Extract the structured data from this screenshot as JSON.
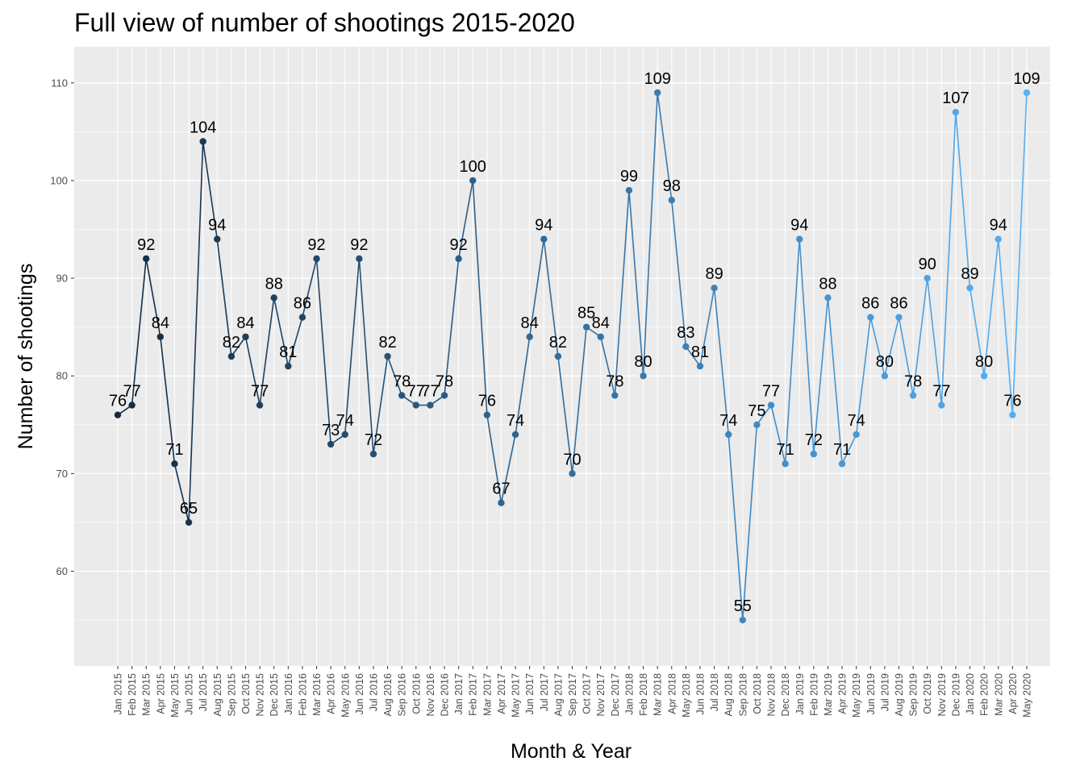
{
  "chart_data": {
    "type": "line",
    "title": "Full view of number of shootings 2015-2020",
    "xlabel": "Month & Year",
    "ylabel": "Number of shootings",
    "categories": [
      "Jan 2015",
      "Feb 2015",
      "Mar 2015",
      "Apr 2015",
      "May 2015",
      "Jun 2015",
      "Jul 2015",
      "Aug 2015",
      "Sep 2015",
      "Oct 2015",
      "Nov 2015",
      "Dec 2015",
      "Jan 2016",
      "Feb 2016",
      "Mar 2016",
      "Apr 2016",
      "May 2016",
      "Jun 2016",
      "Jul 2016",
      "Aug 2016",
      "Sep 2016",
      "Oct 2016",
      "Nov 2016",
      "Dec 2016",
      "Jan 2017",
      "Feb 2017",
      "Mar 2017",
      "Apr 2017",
      "May 2017",
      "Jun 2017",
      "Jul 2017",
      "Aug 2017",
      "Sep 2017",
      "Oct 2017",
      "Nov 2017",
      "Dec 2017",
      "Jan 2018",
      "Feb 2018",
      "Mar 2018",
      "Apr 2018",
      "May 2018",
      "Jun 2018",
      "Jul 2018",
      "Aug 2018",
      "Sep 2018",
      "Oct 2018",
      "Nov 2018",
      "Dec 2018",
      "Jan 2019",
      "Feb 2019",
      "Mar 2019",
      "Apr 2019",
      "May 2019",
      "Jun 2019",
      "Jul 2019",
      "Aug 2019",
      "Sep 2019",
      "Oct 2019",
      "Nov 2019",
      "Dec 2019",
      "Jan 2020",
      "Feb 2020",
      "Mar 2020",
      "Apr 2020",
      "May 2020"
    ],
    "values": [
      76,
      77,
      92,
      84,
      71,
      65,
      104,
      94,
      82,
      84,
      77,
      88,
      81,
      86,
      92,
      73,
      74,
      92,
      72,
      82,
      78,
      77,
      77,
      78,
      92,
      100,
      76,
      67,
      74,
      84,
      94,
      82,
      70,
      85,
      84,
      78,
      99,
      80,
      109,
      98,
      83,
      81,
      89,
      74,
      55,
      75,
      77,
      71,
      94,
      72,
      88,
      71,
      74,
      86,
      80,
      86,
      78,
      90,
      77,
      107,
      89,
      80,
      94,
      76,
      109
    ],
    "ylim": [
      50.3,
      113.7
    ],
    "yticks": [
      60,
      70,
      80,
      90,
      100,
      110
    ],
    "color_range": [
      "#132b43",
      "#56b1f7"
    ],
    "background": "#ebebeb",
    "grid": true,
    "legend": "none"
  }
}
